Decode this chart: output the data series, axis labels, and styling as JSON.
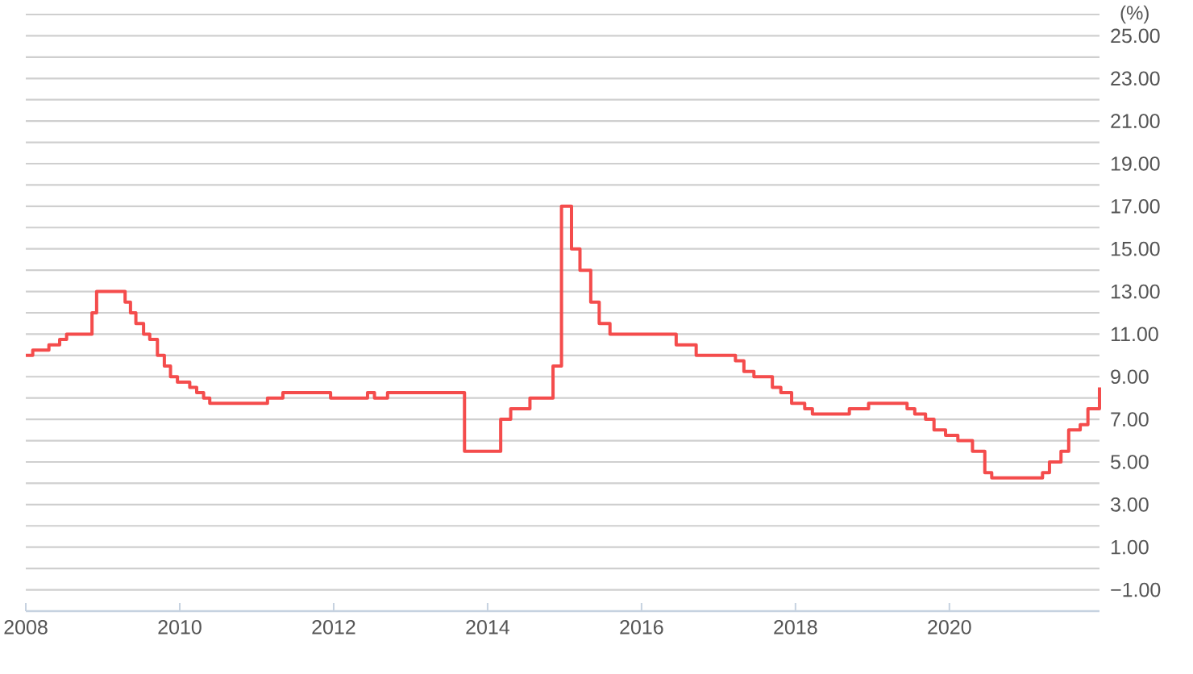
{
  "chart_data": {
    "type": "step",
    "ylabel": "(%)",
    "color": "#f44c4c",
    "grid": "y",
    "x": [
      2008.0,
      2008.09,
      2008.3,
      2008.44,
      2008.53,
      2008.86,
      2008.92,
      2009.29,
      2009.36,
      2009.43,
      2009.53,
      2009.61,
      2009.71,
      2009.8,
      2009.88,
      2009.97,
      2010.13,
      2010.22,
      2010.31,
      2010.39,
      2011.14,
      2011.34,
      2011.96,
      2012.44,
      2012.53,
      2012.7,
      2013.7,
      2014.17,
      2014.3,
      2014.55,
      2014.85,
      2014.96,
      2015.09,
      2015.2,
      2015.34,
      2015.45,
      2015.59,
      2016.45,
      2016.71,
      2017.22,
      2017.33,
      2017.46,
      2017.7,
      2017.81,
      2017.95,
      2018.12,
      2018.22,
      2018.7,
      2018.95,
      2019.45,
      2019.55,
      2019.69,
      2019.8,
      2019.95,
      2020.11,
      2020.3,
      2020.46,
      2020.55,
      2021.21,
      2021.3,
      2021.45,
      2021.55,
      2021.7,
      2021.8,
      2021.95
    ],
    "values": [
      10.0,
      10.25,
      10.5,
      10.75,
      11.0,
      12.0,
      13.0,
      12.5,
      12.0,
      11.5,
      11.0,
      10.75,
      10.0,
      9.5,
      9.0,
      8.75,
      8.5,
      8.25,
      8.0,
      7.75,
      8.0,
      8.25,
      8.0,
      8.25,
      8.0,
      8.25,
      5.5,
      7.0,
      7.5,
      8.0,
      9.5,
      17.0,
      15.0,
      14.0,
      12.5,
      11.5,
      11.0,
      10.5,
      10.0,
      9.75,
      9.25,
      9.0,
      8.5,
      8.25,
      7.75,
      7.5,
      7.25,
      7.5,
      7.75,
      7.5,
      7.25,
      7.0,
      6.5,
      6.25,
      6.0,
      5.5,
      4.5,
      4.25,
      4.5,
      5.0,
      5.5,
      6.5,
      6.75,
      7.5,
      8.5
    ],
    "xlim": [
      2008,
      2021.95
    ],
    "xticks": [
      2008,
      2010,
      2012,
      2014,
      2016,
      2018,
      2020
    ],
    "ylim": [
      -2,
      26
    ],
    "yticks": [
      {
        "value": -1,
        "label": "−1.00"
      },
      {
        "value": 0,
        "label": null
      },
      {
        "value": 1,
        "label": "1.00"
      },
      {
        "value": 2,
        "label": null
      },
      {
        "value": 3,
        "label": "3.00"
      },
      {
        "value": 4,
        "label": null
      },
      {
        "value": 5,
        "label": "5.00"
      },
      {
        "value": 6,
        "label": null
      },
      {
        "value": 7,
        "label": "7.00"
      },
      {
        "value": 8,
        "label": null
      },
      {
        "value": 9,
        "label": "9.00"
      },
      {
        "value": 10,
        "label": null
      },
      {
        "value": 11,
        "label": "11.00"
      },
      {
        "value": 12,
        "label": null
      },
      {
        "value": 13,
        "label": "13.00"
      },
      {
        "value": 14,
        "label": null
      },
      {
        "value": 15,
        "label": "15.00"
      },
      {
        "value": 16,
        "label": null
      },
      {
        "value": 17,
        "label": "17.00"
      },
      {
        "value": 18,
        "label": null
      },
      {
        "value": 19,
        "label": "19.00"
      },
      {
        "value": 20,
        "label": null
      },
      {
        "value": 21,
        "label": "21.00"
      },
      {
        "value": 22,
        "label": null
      },
      {
        "value": 23,
        "label": "23.00"
      },
      {
        "value": 24,
        "label": null
      },
      {
        "value": 25,
        "label": "25.00"
      },
      {
        "value": 26,
        "label": null
      }
    ]
  }
}
